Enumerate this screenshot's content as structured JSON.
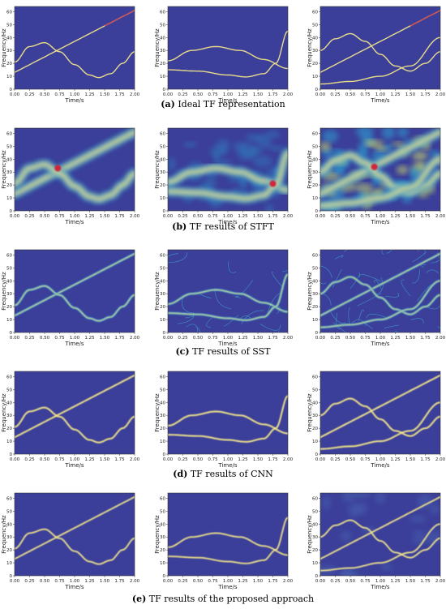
{
  "colors": {
    "background": "#3b3f99",
    "mid": "#2a8fd0",
    "ridge": "#f2e58a",
    "peak": "#d0263a"
  },
  "axes_common": {
    "xlabel": "Time/s",
    "ylabel": "Frequency/Hz",
    "xticks": [
      "0.00",
      "0.25",
      "0.50",
      "0.75",
      "1.00",
      "1.25",
      "1.50",
      "1.75",
      "2.00"
    ],
    "yticks": [
      "0",
      "10",
      "20",
      "30",
      "40",
      "50",
      "60"
    ],
    "xlim": [
      0,
      2
    ],
    "ylim": [
      0,
      64
    ]
  },
  "rows": [
    {
      "label": "(a)",
      "caption": " Ideal TF representation",
      "method": "ideal"
    },
    {
      "label": "(b)",
      "caption": " TF results of STFT",
      "method": "stft"
    },
    {
      "label": "(c)",
      "caption": " TF results of SST",
      "method": "sst"
    },
    {
      "label": "(d)",
      "caption": " TF results of CNN",
      "method": "cnn"
    },
    {
      "label": "(e)",
      "caption": " TF results of the proposed approach",
      "method": "proposed"
    }
  ],
  "chart_data": [
    {
      "type": "heatmap",
      "title": "",
      "xlabel": "Time/s",
      "ylabel": "Frequency/Hz",
      "xlim": [
        0,
        2
      ],
      "ylim": [
        0,
        64
      ],
      "signal": "A",
      "components": [
        {
          "kind": "linear",
          "points": [
            [
              0,
              13
            ],
            [
              2,
              61
            ]
          ]
        },
        {
          "kind": "curve",
          "points": [
            [
              0,
              21
            ],
            [
              0.25,
              33
            ],
            [
              0.5,
              36
            ],
            [
              0.75,
              29
            ],
            [
              1.0,
              19
            ],
            [
              1.25,
              11
            ],
            [
              1.4,
              9
            ],
            [
              1.6,
              12
            ],
            [
              1.8,
              20
            ],
            [
              2.0,
              29
            ]
          ]
        }
      ]
    },
    {
      "type": "heatmap",
      "title": "",
      "xlabel": "Time/s",
      "ylabel": "Frequency/Hz",
      "xlim": [
        0,
        2
      ],
      "ylim": [
        0,
        64
      ],
      "signal": "B",
      "components": [
        {
          "kind": "curve",
          "points": [
            [
              0,
              22
            ],
            [
              0.4,
              30
            ],
            [
              0.8,
              33
            ],
            [
              1.2,
              30
            ],
            [
              1.6,
              23
            ],
            [
              2.0,
              16
            ]
          ]
        },
        {
          "kind": "curve",
          "points": [
            [
              0,
              15
            ],
            [
              0.5,
              14
            ],
            [
              1.0,
              11
            ],
            [
              1.3,
              9.5
            ],
            [
              1.6,
              12
            ],
            [
              1.8,
              20
            ],
            [
              2.0,
              45
            ]
          ]
        }
      ]
    },
    {
      "type": "heatmap",
      "title": "",
      "xlabel": "Time/s",
      "ylabel": "Frequency/Hz",
      "xlim": [
        0,
        2
      ],
      "ylim": [
        0,
        64
      ],
      "signal": "C",
      "components": [
        {
          "kind": "linear",
          "points": [
            [
              0,
              13
            ],
            [
              2,
              61
            ]
          ]
        },
        {
          "kind": "curve",
          "points": [
            [
              0,
              30
            ],
            [
              0.25,
              39
            ],
            [
              0.5,
              43
            ],
            [
              0.75,
              37
            ],
            [
              1.0,
              27
            ],
            [
              1.25,
              18
            ],
            [
              1.5,
              14
            ],
            [
              1.75,
              20
            ],
            [
              2.0,
              29
            ]
          ]
        },
        {
          "kind": "curve",
          "points": [
            [
              0,
              4
            ],
            [
              0.5,
              6
            ],
            [
              1.0,
              10
            ],
            [
              1.5,
              18
            ],
            [
              2.0,
              40
            ]
          ]
        }
      ]
    }
  ]
}
